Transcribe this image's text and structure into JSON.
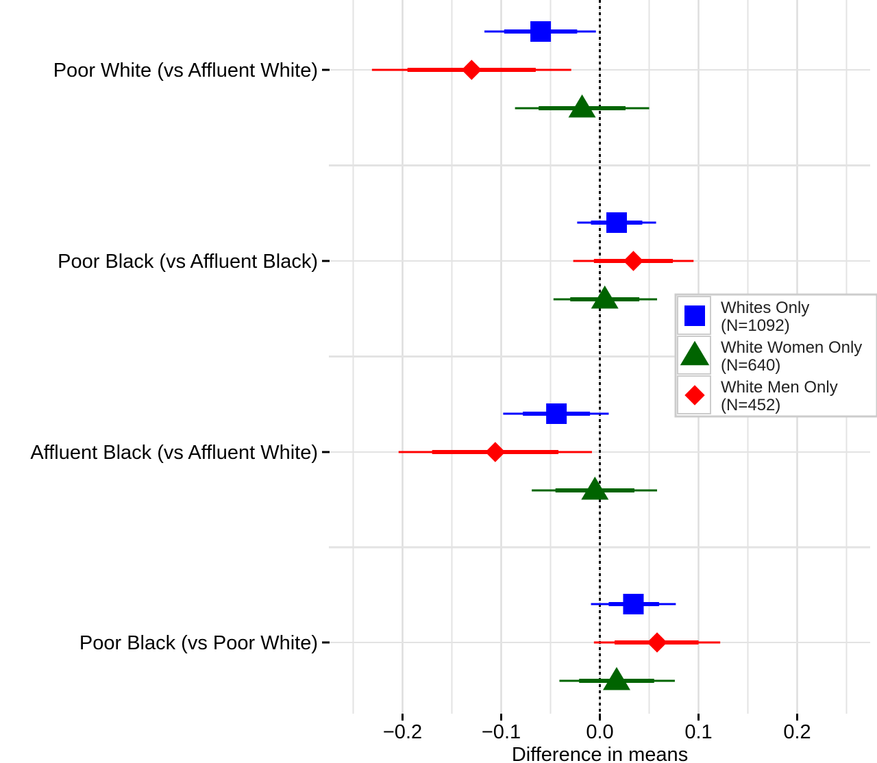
{
  "chart_data": {
    "type": "scatter",
    "subtype": "coefficient-plot",
    "title": "",
    "xlabel": "Difference in means",
    "ylabel": "",
    "xlim": [
      -0.25,
      0.27
    ],
    "x_ticks": [
      -0.2,
      -0.1,
      0.0,
      0.1,
      0.2
    ],
    "x_tick_labels": [
      "−0.2",
      "−0.1",
      "0.0",
      "0.1",
      "0.2"
    ],
    "reference_line": 0.0,
    "grid": true,
    "legend_position": "right",
    "categories": [
      "Poor White (vs Affluent White)",
      "Poor Black (vs Affluent Black)",
      "Affluent Black (vs Affluent White)",
      "Poor Black (vs Poor White)"
    ],
    "series": [
      {
        "name": "Whites Only",
        "legend_label": [
          "Whites Only",
          "(N=1092)"
        ],
        "color": "#0000ff",
        "marker": "square",
        "estimates": [
          -0.06,
          0.017,
          -0.044,
          0.034
        ],
        "ci90": [
          [
            -0.097,
            -0.023
          ],
          [
            -0.009,
            0.043
          ],
          [
            -0.078,
            -0.01
          ],
          [
            0.009,
            0.06
          ]
        ],
        "ci95": [
          [
            -0.117,
            -0.004
          ],
          [
            -0.023,
            0.057
          ],
          [
            -0.098,
            0.009
          ],
          [
            -0.009,
            0.077
          ]
        ]
      },
      {
        "name": "White Men Only",
        "legend_label": [
          "White Men Only",
          "(N=452)"
        ],
        "color": "#ff0000",
        "marker": "diamond",
        "estimates": [
          -0.13,
          0.034,
          -0.106,
          0.058
        ],
        "ci90": [
          [
            -0.195,
            -0.065
          ],
          [
            -0.006,
            0.074
          ],
          [
            -0.17,
            -0.042
          ],
          [
            0.015,
            0.1
          ]
        ],
        "ci95": [
          [
            -0.231,
            -0.029
          ],
          [
            -0.027,
            0.095
          ],
          [
            -0.204,
            -0.008
          ],
          [
            -0.006,
            0.122
          ]
        ]
      },
      {
        "name": "White Women Only",
        "legend_label": [
          "White Women Only",
          "(N=640)"
        ],
        "color": "#006400",
        "marker": "triangle",
        "estimates": [
          -0.018,
          0.005,
          -0.005,
          0.017
        ],
        "ci90": [
          [
            -0.062,
            0.026
          ],
          [
            -0.03,
            0.04
          ],
          [
            -0.045,
            0.035
          ],
          [
            -0.021,
            0.055
          ]
        ],
        "ci95": [
          [
            -0.086,
            0.05
          ],
          [
            -0.047,
            0.058
          ],
          [
            -0.069,
            0.058
          ],
          [
            -0.041,
            0.076
          ]
        ]
      }
    ],
    "legend_order": [
      "Whites Only",
      "White Women Only",
      "White Men Only"
    ]
  }
}
